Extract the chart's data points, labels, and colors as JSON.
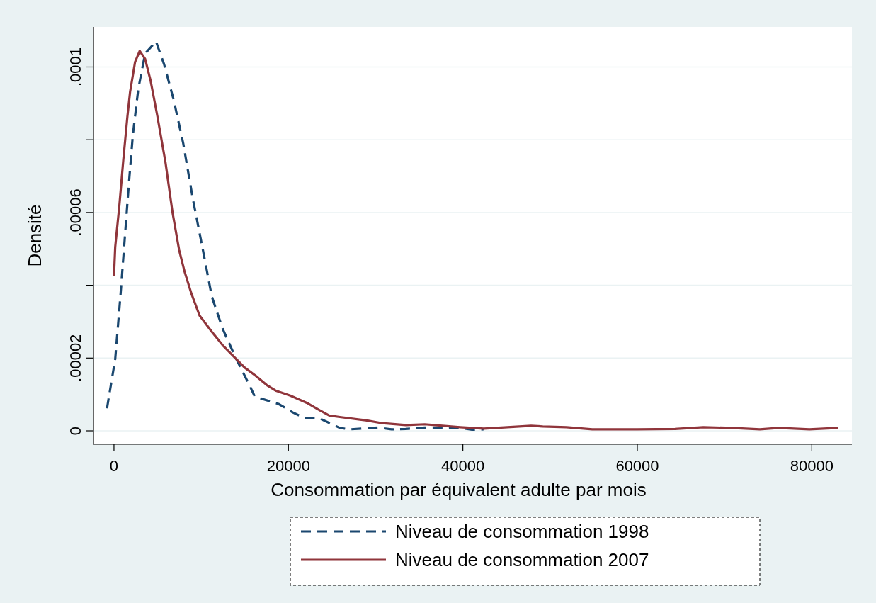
{
  "chart_data": {
    "type": "line",
    "xlabel": "Consommation par équivalent adulte par mois",
    "ylabel": "Densité",
    "xlim": [
      -2350,
      84600
    ],
    "ylim": [
      -3.7e-06,
      0.000111
    ],
    "xticks": [
      0,
      20000,
      40000,
      60000,
      80000
    ],
    "yticks": [
      0,
      {
        "value": 2e-05,
        "label": ".00002"
      },
      {
        "value": 4e-05,
        "label": null
      },
      {
        "value": 6e-05,
        "label": ".00006"
      },
      {
        "value": 8e-05,
        "label": null
      },
      {
        "value": 0.0001,
        "label": ".0001"
      }
    ],
    "grid": "y",
    "legend": "bottom",
    "marker": "none",
    "series": [
      {
        "name": "Niveau de consommation 1998",
        "color": "#1a476f",
        "line_style": "dashed",
        "x": [
          -800,
          140,
          760,
          1230,
          1700,
          2160,
          2790,
          3570,
          4820,
          5750,
          6850,
          7940,
          9030,
          10130,
          11220,
          12470,
          13870,
          15580,
          16150,
          18860,
          20480,
          21830,
          23590,
          25890,
          26970,
          30220,
          31820,
          33440,
          35630,
          39420,
          41050,
          42370
        ],
        "values": [
          6.2e-06,
          1.97e-05,
          3.77e-05,
          5.27e-05,
          6.77e-05,
          8.12e-05,
          9.4e-05,
          0.0001037,
          0.000107,
          0.0001007,
          9.09e-05,
          7.9e-05,
          6.39e-05,
          5.05e-05,
          3.69e-05,
          2.8e-05,
          2.05e-05,
          1.23e-05,
          9.4e-06,
          7.4e-06,
          5.1e-06,
          3.5e-06,
          3.4e-06,
          8e-07,
          4e-07,
          9e-07,
          4e-07,
          5e-07,
          9e-07,
          9e-07,
          3e-07,
          4e-07
        ]
      },
      {
        "name": "Niveau de consommation 2007",
        "color": "#90353b",
        "line_style": "solid",
        "x": [
          0,
          140,
          610,
          1070,
          1540,
          1850,
          2420,
          2950,
          3570,
          4200,
          4980,
          5910,
          6700,
          7470,
          8100,
          8880,
          9810,
          11220,
          12470,
          14030,
          14970,
          16220,
          17510,
          18590,
          20210,
          22100,
          23460,
          24680,
          25890,
          28870,
          30760,
          33470,
          35630,
          39690,
          42400,
          43750,
          47810,
          49160,
          51870,
          54840,
          59980,
          64310,
          67560,
          70800,
          74050,
          76220,
          79730,
          82980
        ],
        "values": [
          4.26e-05,
          5.05e-05,
          6.17e-05,
          7.45e-05,
          8.64e-05,
          9.32e-05,
          0.0001014,
          0.0001044,
          0.0001022,
          9.62e-05,
          8.64e-05,
          7.37e-05,
          6.02e-05,
          4.97e-05,
          4.37e-05,
          3.77e-05,
          3.17e-05,
          2.72e-05,
          2.35e-05,
          1.97e-05,
          1.74e-05,
          1.52e-05,
          1.26e-05,
          1.1e-05,
          9.7e-06,
          7.7e-06,
          5.8e-06,
          4.2e-06,
          3.8e-06,
          2.9e-06,
          2.1e-06,
          1.6e-06,
          1.8e-06,
          1e-06,
          6e-07,
          8e-07,
          1.4e-06,
          1.2e-06,
          1e-06,
          4e-07,
          4e-07,
          5e-07,
          1e-06,
          8e-07,
          4e-07,
          8e-07,
          4e-07,
          8e-07
        ]
      }
    ]
  }
}
